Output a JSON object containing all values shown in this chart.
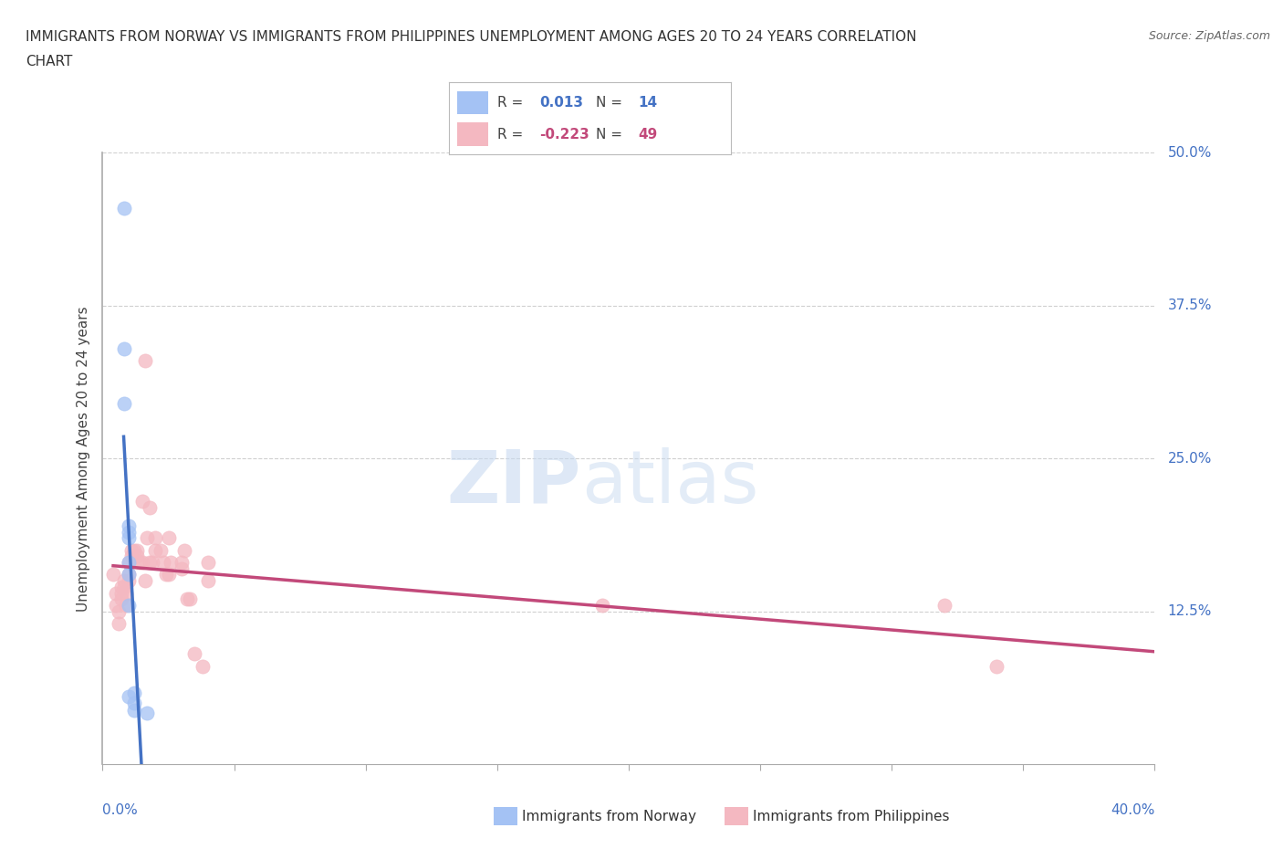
{
  "title_line1": "IMMIGRANTS FROM NORWAY VS IMMIGRANTS FROM PHILIPPINES UNEMPLOYMENT AMONG AGES 20 TO 24 YEARS CORRELATION",
  "title_line2": "CHART",
  "source": "Source: ZipAtlas.com",
  "ylabel": "Unemployment Among Ages 20 to 24 years",
  "ytick_labels": [
    "12.5%",
    "25.0%",
    "37.5%",
    "50.0%"
  ],
  "ytick_values": [
    0.125,
    0.25,
    0.375,
    0.5
  ],
  "xlim": [
    0.0,
    0.4
  ],
  "ylim": [
    0.0,
    0.5
  ],
  "norway_R": "0.013",
  "norway_N": "14",
  "philippines_R": "-0.223",
  "philippines_N": "49",
  "norway_color": "#a4c2f4",
  "philippines_color": "#f4b8c1",
  "norway_line_color": "#4472c4",
  "philippines_line_color": "#c2497a",
  "norway_scatter_x": [
    0.008,
    0.008,
    0.008,
    0.01,
    0.01,
    0.01,
    0.01,
    0.01,
    0.01,
    0.01,
    0.012,
    0.012,
    0.012,
    0.017
  ],
  "norway_scatter_y": [
    0.455,
    0.34,
    0.295,
    0.195,
    0.19,
    0.185,
    0.165,
    0.155,
    0.13,
    0.055,
    0.058,
    0.05,
    0.044,
    0.042
  ],
  "philippines_scatter_x": [
    0.004,
    0.005,
    0.005,
    0.006,
    0.006,
    0.007,
    0.007,
    0.007,
    0.008,
    0.008,
    0.009,
    0.009,
    0.01,
    0.01,
    0.01,
    0.011,
    0.011,
    0.012,
    0.013,
    0.013,
    0.014,
    0.015,
    0.015,
    0.016,
    0.016,
    0.017,
    0.018,
    0.018,
    0.019,
    0.02,
    0.02,
    0.022,
    0.023,
    0.024,
    0.025,
    0.025,
    0.026,
    0.03,
    0.03,
    0.031,
    0.032,
    0.033,
    0.035,
    0.038,
    0.04,
    0.04,
    0.19,
    0.32,
    0.34
  ],
  "philippines_scatter_y": [
    0.155,
    0.14,
    0.13,
    0.125,
    0.115,
    0.145,
    0.14,
    0.135,
    0.15,
    0.145,
    0.14,
    0.13,
    0.165,
    0.155,
    0.15,
    0.175,
    0.17,
    0.175,
    0.175,
    0.17,
    0.165,
    0.215,
    0.165,
    0.33,
    0.15,
    0.185,
    0.21,
    0.165,
    0.165,
    0.185,
    0.175,
    0.175,
    0.165,
    0.155,
    0.185,
    0.155,
    0.165,
    0.165,
    0.16,
    0.175,
    0.135,
    0.135,
    0.09,
    0.08,
    0.165,
    0.15,
    0.13,
    0.13,
    0.08
  ],
  "background_color": "#ffffff",
  "grid_color": "#d0d0d0",
  "norway_line_x_solid_end": 0.017,
  "norway_line_x_dash_end": 0.4,
  "philippines_line_x_start": 0.004,
  "philippines_line_x_end": 0.4
}
